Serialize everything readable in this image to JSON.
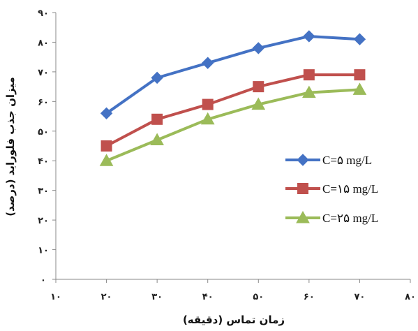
{
  "chart_data": {
    "type": "line",
    "xlabel": "زمان تماس (دقیقه)",
    "ylabel": "میزان جذب فلوراید (درصد)",
    "x_ticks": [
      "۱۰",
      "۲۰",
      "۳۰",
      "۴۰",
      "۵۰",
      "۶۰",
      "۷۰",
      "۸۰"
    ],
    "y_ticks": [
      "۰",
      "۱۰",
      "۲۰",
      "۳۰",
      "۴۰",
      "۵۰",
      "۶۰",
      "۷۰",
      "۸۰",
      "۹۰"
    ],
    "xlim": [
      10,
      80
    ],
    "ylim": [
      0,
      90
    ],
    "grid": false,
    "legend_position": "right",
    "x": [
      20,
      30,
      40,
      50,
      60,
      70
    ],
    "series": [
      {
        "name": "C=۵ mg/L",
        "color": "#4472C4",
        "marker": "diamond",
        "values": [
          56,
          68,
          73,
          78,
          82,
          81
        ]
      },
      {
        "name": "C=۱۵ mg/L",
        "color": "#C0504D",
        "marker": "square",
        "values": [
          45,
          54,
          59,
          65,
          69,
          69
        ]
      },
      {
        "name": "C=۲۵ mg/L",
        "color": "#9BBB59",
        "marker": "triangle",
        "values": [
          40,
          47,
          54,
          59,
          63,
          64
        ]
      }
    ]
  }
}
